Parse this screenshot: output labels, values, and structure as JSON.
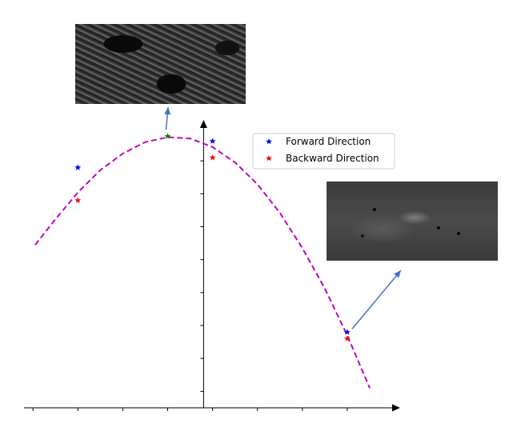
{
  "chart_data": {
    "type": "scatter",
    "xlim": [
      -4,
      4.2
    ],
    "ylim": [
      0,
      8.5
    ],
    "x_ticks": [
      -3.8,
      -2.8,
      -1.8,
      -0.8,
      0.2,
      1.2,
      2.2,
      3.2
    ],
    "y_ticks": [
      0.5,
      1.5,
      2.5,
      3.5,
      4.5,
      5.5,
      6.5,
      7.5
    ],
    "curve": {
      "style": "dashed",
      "color": "#bf00bf",
      "x": [
        -3.75,
        -3.3,
        -2.8,
        -2.3,
        -1.8,
        -1.3,
        -0.8,
        -0.3,
        0.2,
        0.7,
        1.2,
        1.7,
        2.2,
        2.7,
        3.2,
        3.7
      ],
      "y": [
        4.95,
        5.73,
        6.54,
        7.22,
        7.72,
        8.07,
        8.22,
        8.18,
        7.92,
        7.45,
        6.79,
        5.92,
        4.85,
        3.62,
        2.2,
        0.6
      ]
    },
    "series": [
      {
        "name": "Forward Direction",
        "color": "#0000ff",
        "marker": "star",
        "points": [
          [
            -2.8,
            7.3
          ],
          [
            0.2,
            8.1
          ],
          [
            3.2,
            2.3
          ]
        ]
      },
      {
        "name": "Backward Direction",
        "color": "#ff0000",
        "marker": "star",
        "points": [
          [
            -2.8,
            6.3
          ],
          [
            0.2,
            7.6
          ],
          [
            3.2,
            2.1
          ]
        ]
      },
      {
        "color": "#008000",
        "marker": "star",
        "points": [
          [
            -0.8,
            8.25
          ]
        ]
      }
    ],
    "legend_position": "top-right",
    "annotations": [
      {
        "target_point": [
          -0.8,
          8.25
        ],
        "image": "top-thumbnail",
        "arrow_color": "#4472c4"
      },
      {
        "target_point": [
          3.2,
          2.2
        ],
        "image": "right-thumbnail",
        "arrow_color": "#4472c4"
      }
    ]
  },
  "images": {
    "top": "cell-microscopy-thumbnail-top",
    "right": "cell-microscopy-thumbnail-right"
  }
}
